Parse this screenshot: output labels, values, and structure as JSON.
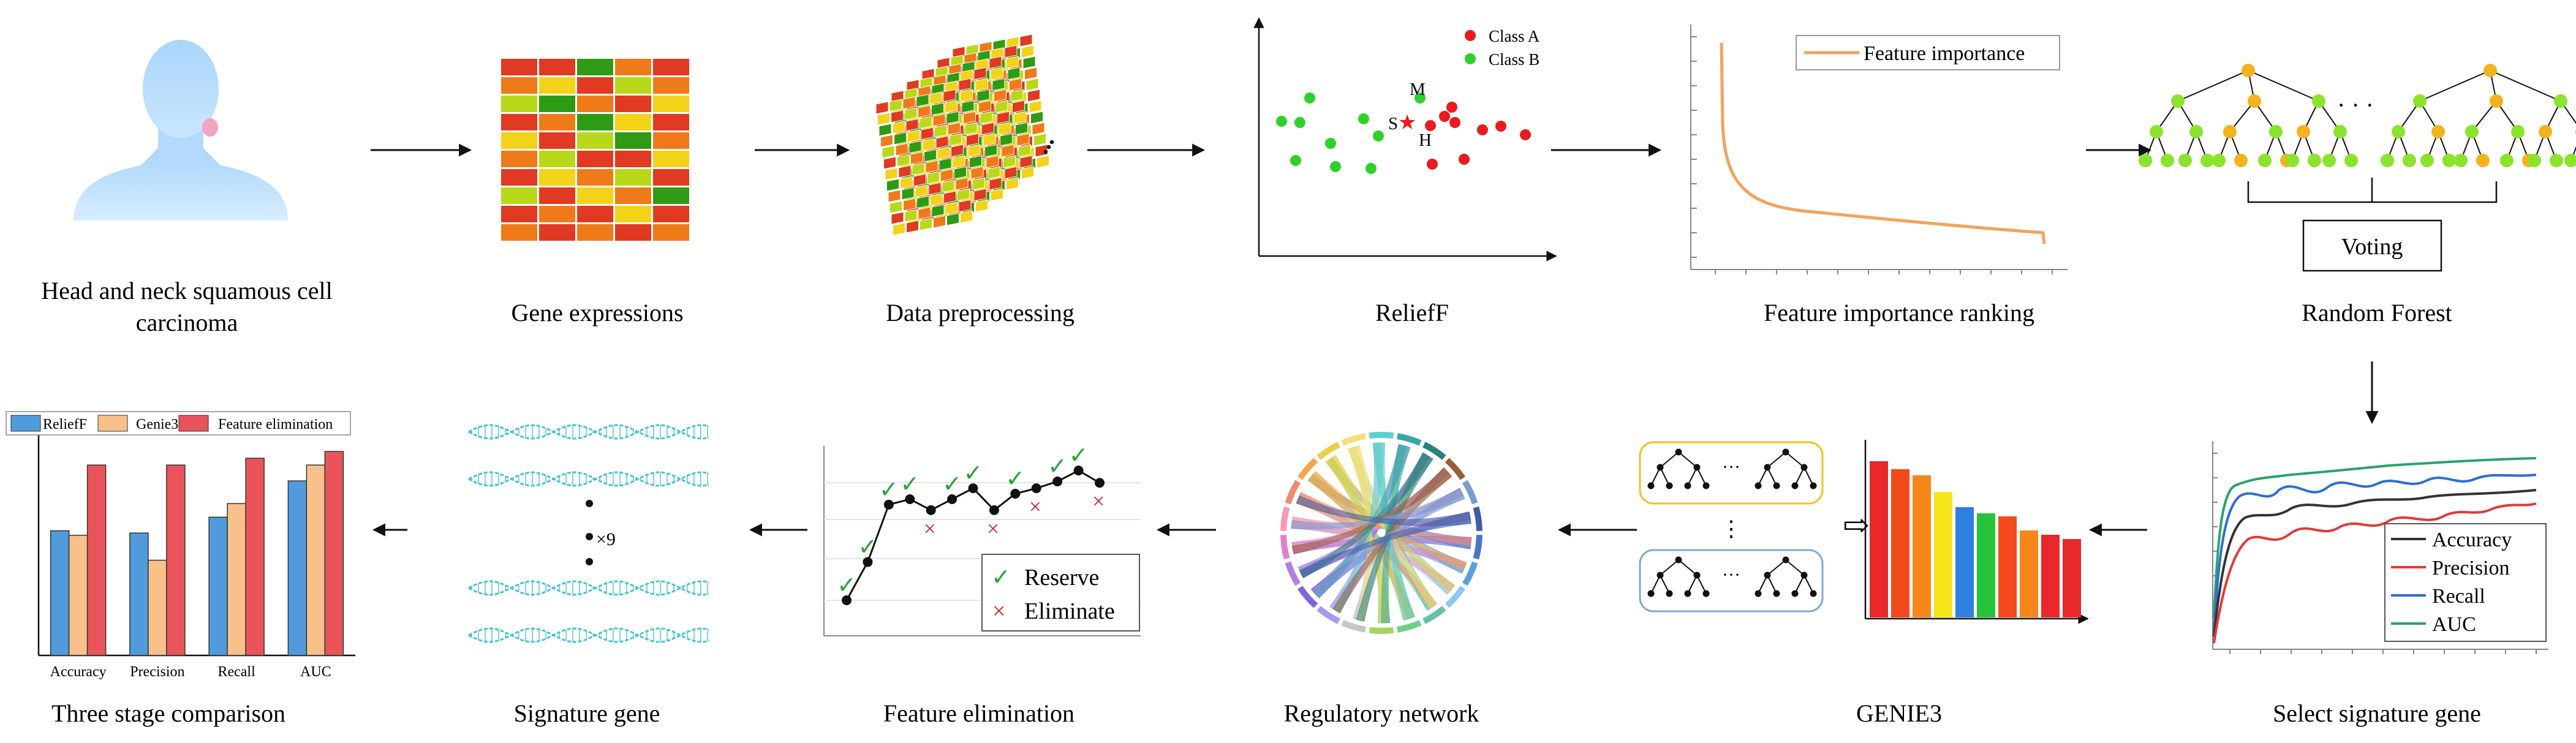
{
  "colors": {
    "heat_red": "#e03a22",
    "heat_orange": "#ef7a1a",
    "heat_yellow": "#f3d21a",
    "heat_lime": "#b9d81a",
    "heat_green": "#2f9b14",
    "class_a": "#e81c1c",
    "class_b": "#2ed12b",
    "importance_line": "#f3a25f",
    "tree_orange": "#f5b21f",
    "tree_green": "#8be32b",
    "dna": "#46c3d4",
    "gene_box_yellow": "#f3c21c",
    "gene_box_blue": "#7fa8d8",
    "metric_accuracy": "#333333",
    "metric_precision": "#e03a3a",
    "metric_recall": "#2d6fd1",
    "metric_auc": "#2aa36a",
    "comp_relieff": "#4f9bdc",
    "comp_genie3": "#f8c08a",
    "comp_fe": "#e9545a"
  },
  "steps": {
    "hnscc": "Head and neck squamous cell carcinoma",
    "gene_expressions": "Gene expressions",
    "data_preprocessing": "Data preprocessing",
    "relieff": "ReliefF",
    "feature_importance_ranking": "Feature importance ranking",
    "random_forest": "Random Forest",
    "select_signature_gene": "Select signature gene",
    "genie3": "GENIE3",
    "regulatory_network": "Regulatory network",
    "feature_elimination": "Feature elimination",
    "signature_gene": "Signature gene",
    "three_stage_comparison": "Three stage comparison"
  },
  "relieff_panel": {
    "legend": [
      "Class A",
      "Class B"
    ],
    "markers": {
      "m": "M",
      "s": "S",
      "h": "H"
    }
  },
  "importance_panel": {
    "legend": "Feature importance"
  },
  "forest_panel": {
    "ellipsis": "· · ·",
    "voting": "Voting"
  },
  "select_panel": {
    "legend": [
      "Accuracy",
      "Precision",
      "Recall",
      "AUC"
    ]
  },
  "genie3_panel": {
    "ellipsis": "···",
    "vdots": "⋮"
  },
  "elimination_panel": {
    "legend": [
      "Reserve",
      "Eliminate"
    ],
    "check": "✓",
    "cross": "×",
    "points": [
      {
        "x": 1,
        "y": 0.0,
        "keep": true
      },
      {
        "x": 2,
        "y": 0.28,
        "keep": true
      },
      {
        "x": 3,
        "y": 0.7,
        "keep": true
      },
      {
        "x": 4,
        "y": 0.74,
        "keep": true
      },
      {
        "x": 5,
        "y": 0.66,
        "keep": false
      },
      {
        "x": 6,
        "y": 0.74,
        "keep": true
      },
      {
        "x": 7,
        "y": 0.82,
        "keep": true
      },
      {
        "x": 8,
        "y": 0.66,
        "keep": false
      },
      {
        "x": 9,
        "y": 0.78,
        "keep": true
      },
      {
        "x": 10,
        "y": 0.82,
        "keep": false
      },
      {
        "x": 11,
        "y": 0.87,
        "keep": true
      },
      {
        "x": 12,
        "y": 0.95,
        "keep": true
      },
      {
        "x": 13,
        "y": 0.86,
        "keep": false
      }
    ]
  },
  "signature_panel": {
    "multiplier": "×9"
  },
  "chart_data": {
    "type": "bar",
    "title": "",
    "xlabel": "",
    "ylabel": "",
    "categories": [
      "Accuracy",
      "Precision",
      "Recall",
      "AUC"
    ],
    "series": [
      {
        "name": "ReliefF",
        "values": [
          0.55,
          0.54,
          0.61,
          0.77
        ]
      },
      {
        "name": "Genie3",
        "values": [
          0.53,
          0.42,
          0.67,
          0.84
        ]
      },
      {
        "name": "Feature elimination",
        "values": [
          0.84,
          0.84,
          0.87,
          0.9
        ]
      }
    ],
    "ylim": [
      0,
      1
    ],
    "grid": false,
    "legend": "top"
  }
}
